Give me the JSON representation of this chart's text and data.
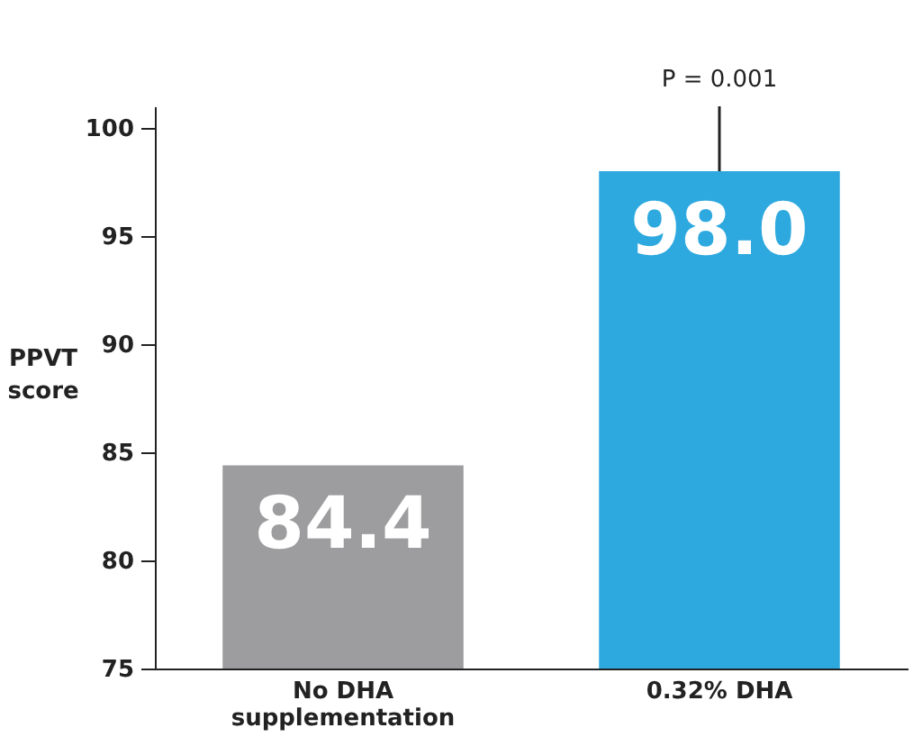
{
  "chart_data": {
    "type": "bar",
    "ylabel": "PPVT score",
    "categories": [
      "No DHA supplementation",
      "0.32% DHA"
    ],
    "values": [
      84.4,
      98.0
    ],
    "colors": [
      "#9d9d9f",
      "#2ea9df"
    ],
    "errors": [
      null,
      [
        98.0,
        101.0
      ]
    ],
    "ylim": [
      75,
      101
    ],
    "yticks": [
      75,
      80,
      85,
      90,
      95,
      100
    ],
    "grid": false,
    "value_labels": [
      "84.4",
      "98.0"
    ],
    "annotations": [
      {
        "text": "P = 0.001",
        "x": "0.32% DHA",
        "y": 101.0
      }
    ]
  }
}
